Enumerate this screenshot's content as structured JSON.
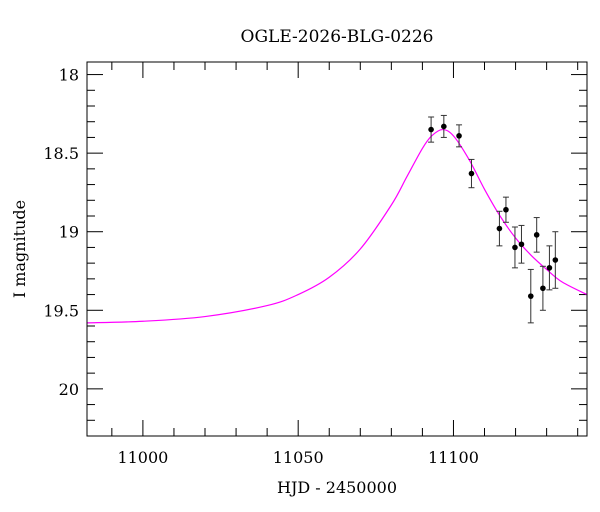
{
  "chart_data": {
    "type": "scatter",
    "title": "OGLE-2026-BLG-0226",
    "xlabel": "HJD - 2450000",
    "ylabel": "I magnitude",
    "xlim": [
      10982,
      11143
    ],
    "ylim": [
      20.3,
      17.92
    ],
    "y_inverted": true,
    "x_ticks": [
      11000,
      11050,
      11100
    ],
    "y_ticks": [
      18,
      18.5,
      19,
      19.5,
      20
    ],
    "y_tick_labels": [
      "18",
      "18.5",
      "19",
      "19.5",
      "20"
    ],
    "grid": false,
    "points": [
      {
        "x": 11092.8,
        "y": 18.35,
        "err": 0.08
      },
      {
        "x": 11096.9,
        "y": 18.33,
        "err": 0.07
      },
      {
        "x": 11101.8,
        "y": 18.39,
        "err": 0.07
      },
      {
        "x": 11105.8,
        "y": 18.63,
        "err": 0.09
      },
      {
        "x": 11114.8,
        "y": 18.98,
        "err": 0.11
      },
      {
        "x": 11116.9,
        "y": 18.86,
        "err": 0.08
      },
      {
        "x": 11119.8,
        "y": 19.1,
        "err": 0.13
      },
      {
        "x": 11121.9,
        "y": 19.08,
        "err": 0.12
      },
      {
        "x": 11124.9,
        "y": 19.41,
        "err": 0.17
      },
      {
        "x": 11126.8,
        "y": 19.02,
        "err": 0.11
      },
      {
        "x": 11128.8,
        "y": 19.36,
        "err": 0.14
      },
      {
        "x": 11130.9,
        "y": 19.23,
        "err": 0.14
      },
      {
        "x": 11132.8,
        "y": 19.18,
        "err": 0.18
      }
    ],
    "model_curve": {
      "color": "#ff00ff",
      "x": [
        10982,
        11000,
        11020,
        11040,
        11050,
        11060,
        11070,
        11080,
        11085,
        11090,
        11093,
        11096.5,
        11100,
        11105,
        11110,
        11115,
        11120,
        11125,
        11130,
        11135,
        11143
      ],
      "y": [
        19.58,
        19.57,
        19.54,
        19.47,
        19.4,
        19.29,
        19.11,
        18.83,
        18.65,
        18.47,
        18.39,
        18.35,
        18.39,
        18.54,
        18.73,
        18.9,
        19.04,
        19.15,
        19.24,
        19.32,
        19.4
      ]
    },
    "point_color": "#000000"
  }
}
